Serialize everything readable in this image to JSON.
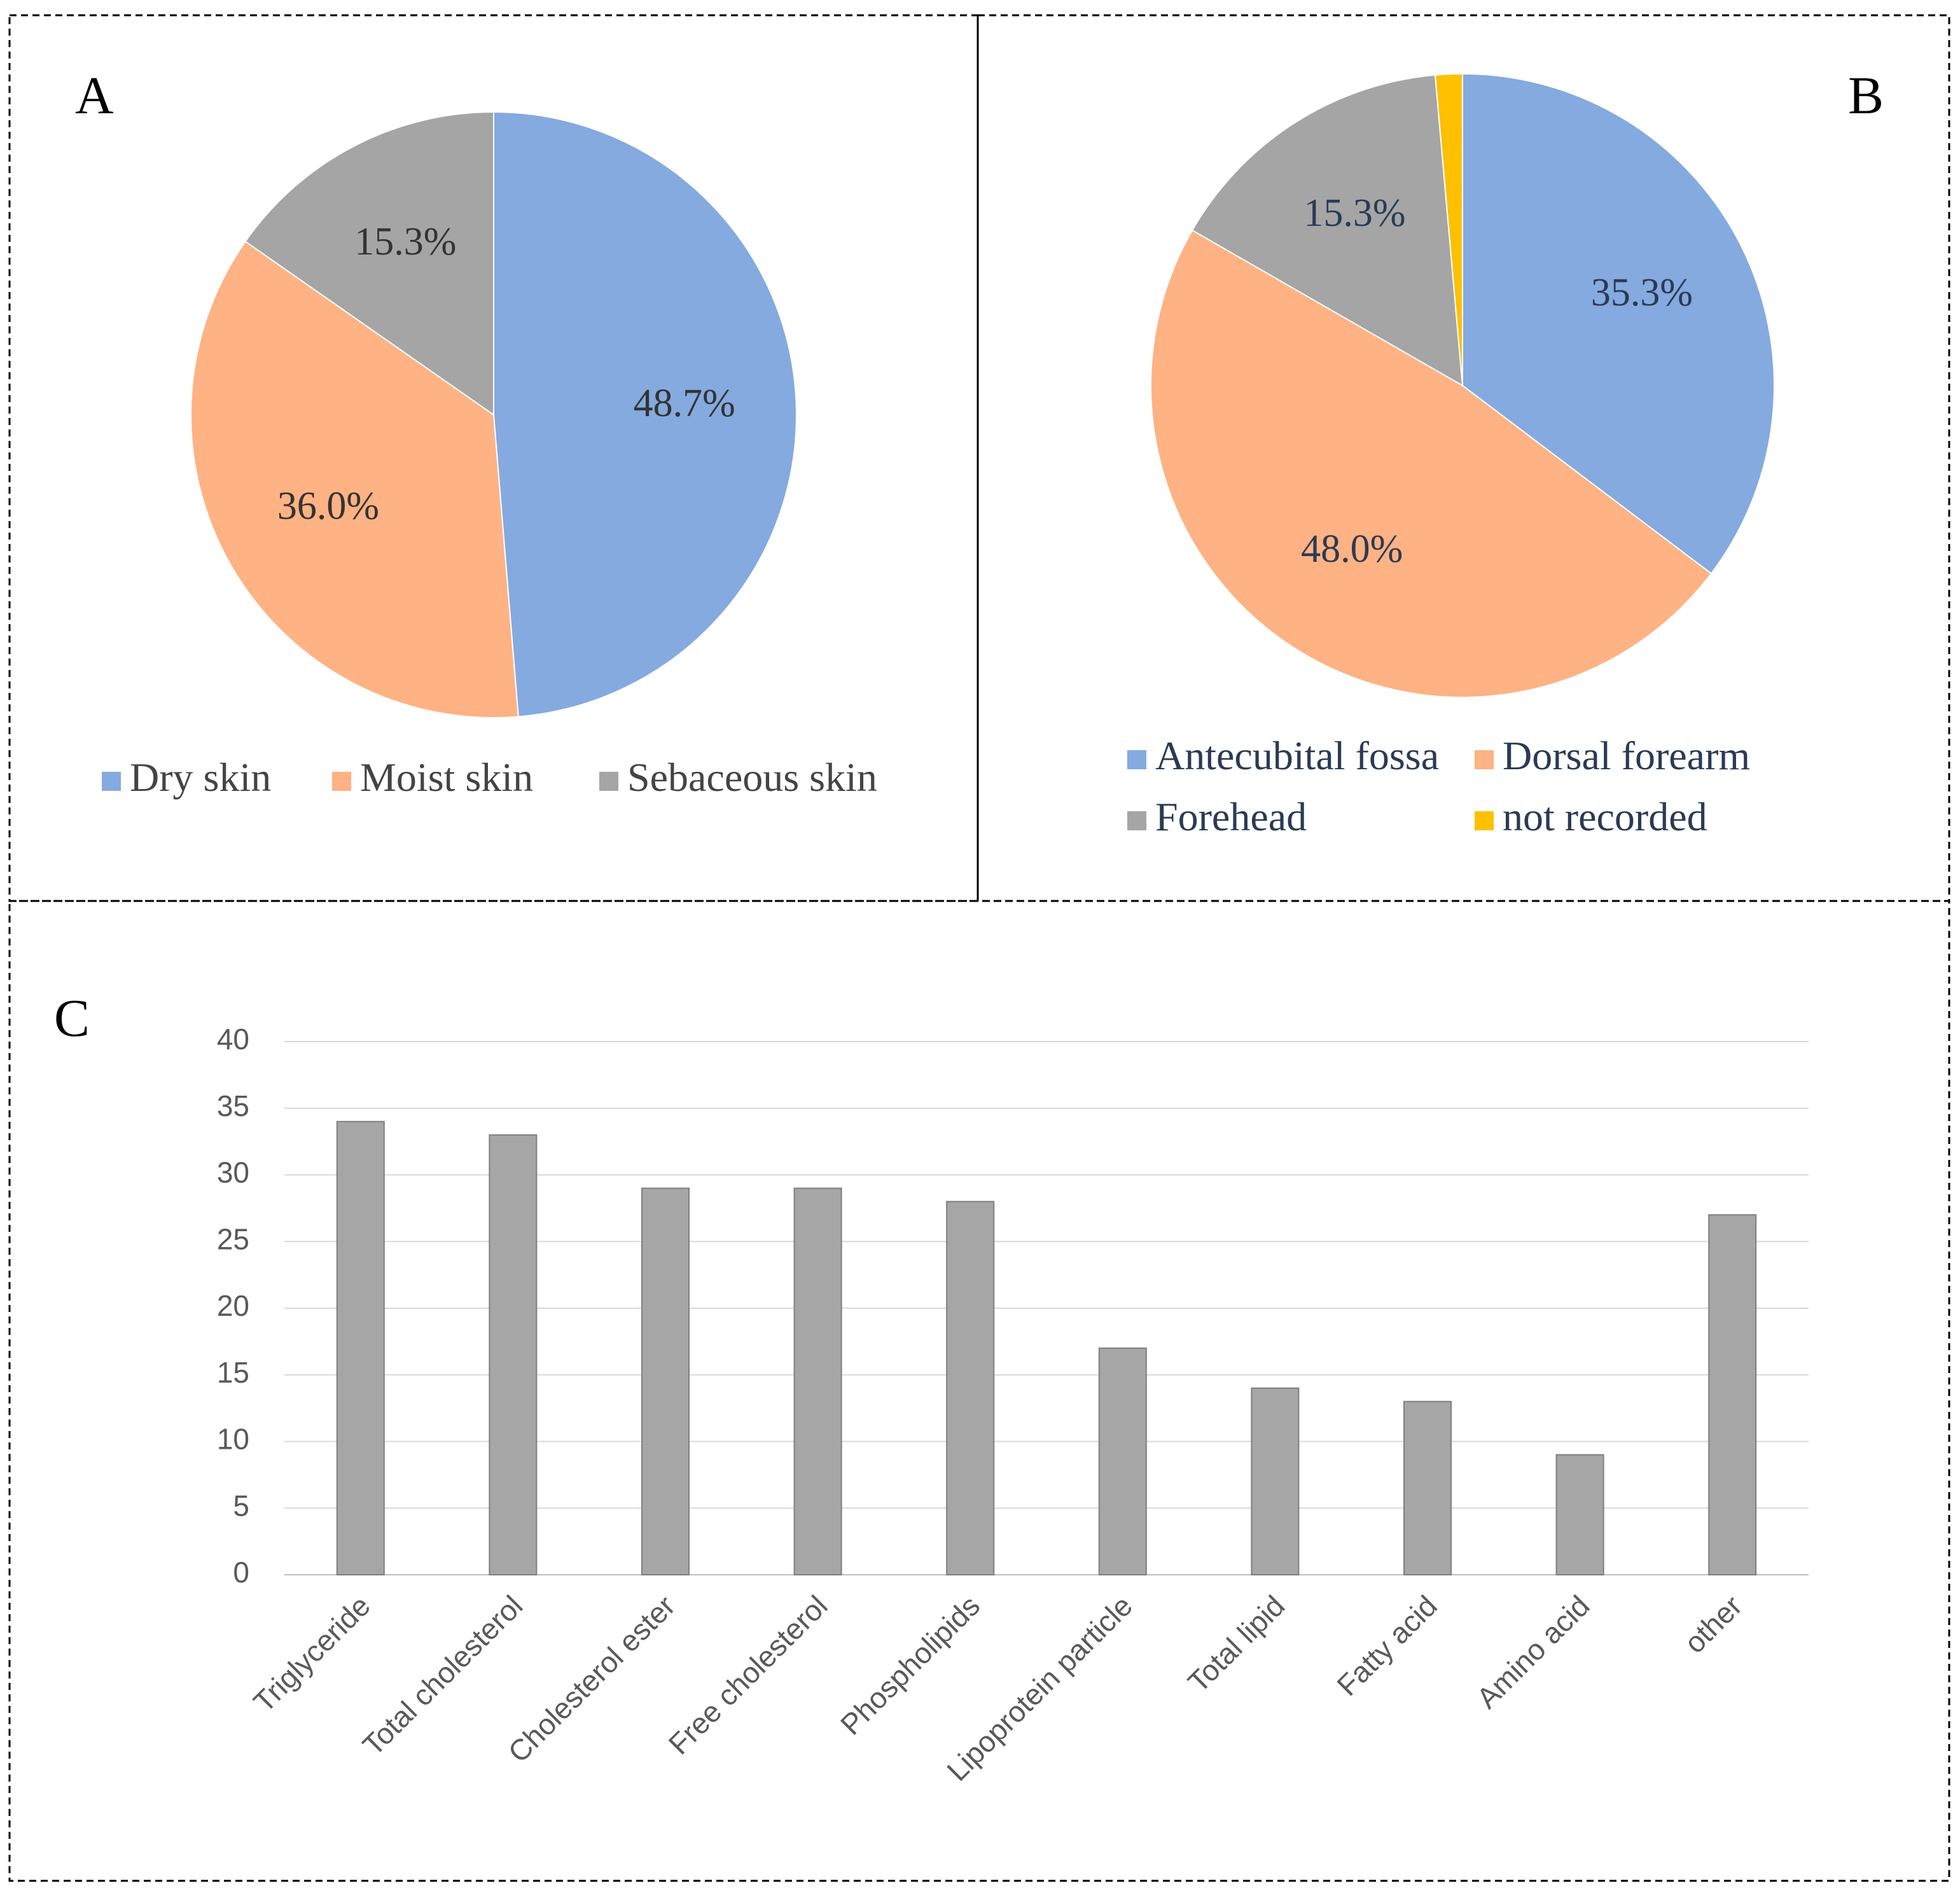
{
  "chart_data": [
    {
      "panel_label": "A",
      "type": "pie",
      "labels": [
        "Dry skin",
        "Moist skin",
        "Sebaceous skin"
      ],
      "values": [
        48.7,
        36.0,
        15.3
      ],
      "data_labels": [
        "48.7%",
        "36.0%",
        "15.3%"
      ],
      "colors": [
        "#84AADF",
        "#FFB283",
        "#A5A5A5"
      ],
      "legend_position": "bottom"
    },
    {
      "panel_label": "B",
      "type": "pie",
      "labels": [
        "Antecubital fossa",
        "Dorsal forearm",
        "Forehead",
        "not recorded"
      ],
      "values": [
        35.3,
        48.0,
        15.3,
        1.4
      ],
      "data_labels": [
        "35.3%",
        "48.0%",
        "15.3%",
        ""
      ],
      "colors": [
        "#84AADF",
        "#FFB283",
        "#A5A5A5",
        "#FFC000"
      ],
      "legend_position": "bottom"
    },
    {
      "panel_label": "C",
      "type": "bar",
      "categories": [
        "Triglyceride",
        "Total cholesterol",
        "Cholesterol ester",
        "Free cholesterol",
        "Phospholipids",
        "Lipoprotein particle",
        "Total lipid",
        "Fatty acid",
        "Amino acid",
        "other"
      ],
      "values": [
        34,
        33,
        29,
        29,
        28,
        17,
        14,
        13,
        9,
        27
      ],
      "ylim": [
        0,
        40
      ],
      "yticks": [
        "0",
        "5",
        "10",
        "15",
        "20",
        "25",
        "30",
        "35",
        "40"
      ],
      "grid": true,
      "bar_color": "#A6A6A6"
    }
  ]
}
